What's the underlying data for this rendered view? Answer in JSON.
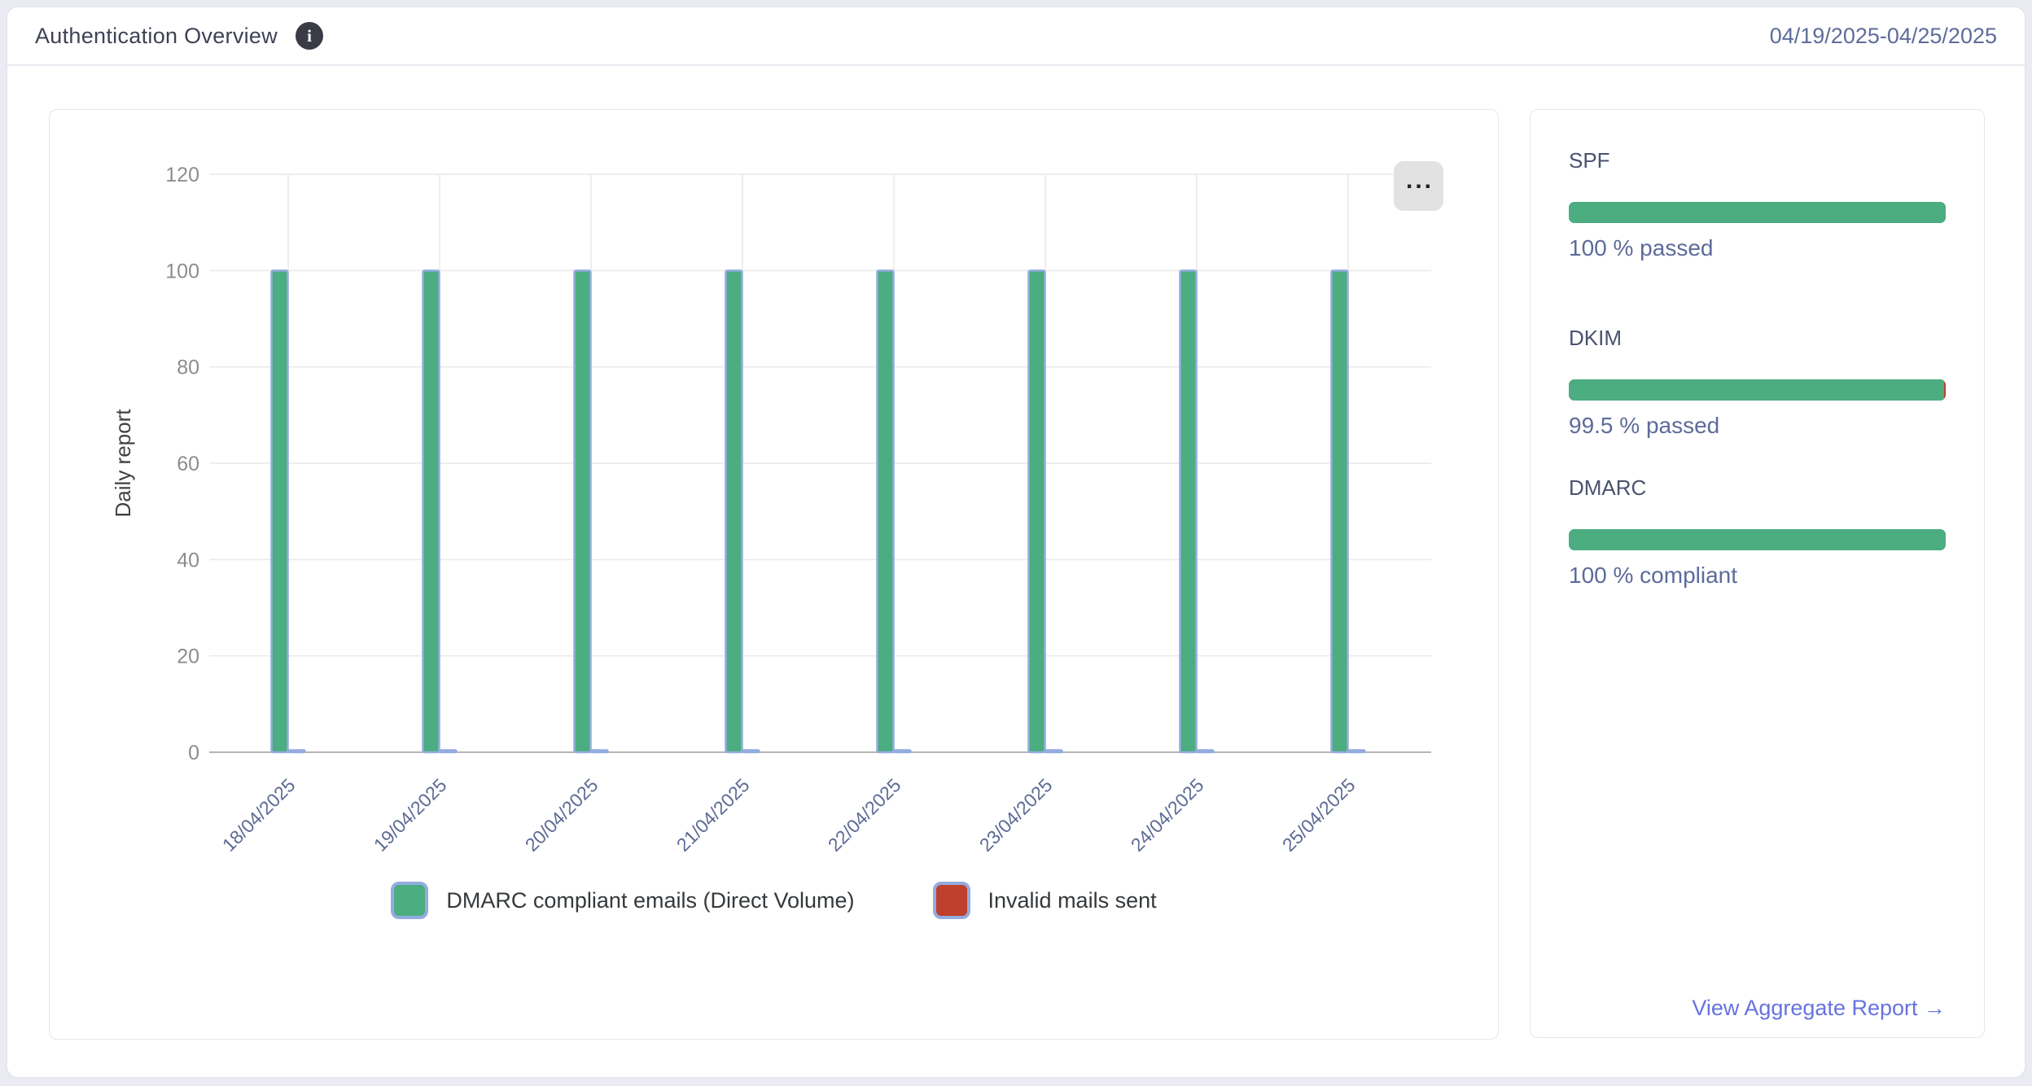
{
  "header": {
    "title": "Authentication Overview",
    "date_range": "04/19/2025-04/25/2025"
  },
  "icons": {
    "info": "i",
    "menu_dots": "..."
  },
  "chart_data": {
    "type": "bar",
    "title": "",
    "ylabel": "Daily report",
    "xlabel": "",
    "ylim": [
      0,
      120
    ],
    "ytick_step": 20,
    "grid": true,
    "legend_position": "bottom",
    "bar_stroke_color": "#93acdf",
    "categories": [
      "18/04/2025",
      "19/04/2025",
      "20/04/2025",
      "21/04/2025",
      "22/04/2025",
      "23/04/2025",
      "24/04/2025",
      "25/04/2025"
    ],
    "series": [
      {
        "name": "DMARC compliant emails (Direct Volume)",
        "color": "#4bad80",
        "values": [
          100,
          100,
          100,
          100,
          100,
          100,
          100,
          100
        ]
      },
      {
        "name": "Invalid mails sent",
        "color": "#c0402e",
        "values": [
          0,
          0,
          0,
          0,
          0,
          0,
          0,
          0
        ]
      }
    ]
  },
  "sidebar": {
    "sections": [
      {
        "label": "SPF",
        "percent": 100,
        "status_text": "100 % passed",
        "fill_color": "#4bad80",
        "track_color": "#4bad80"
      },
      {
        "label": "DKIM",
        "percent": 99.5,
        "status_text": "99.5 % passed",
        "fill_color": "#4bad80",
        "track_color": "#c0402e"
      },
      {
        "label": "DMARC",
        "percent": 100,
        "status_text": "100 % compliant",
        "fill_color": "#4bad80",
        "track_color": "#4bad80"
      }
    ],
    "link_label": "View Aggregate Report →"
  },
  "colors": {
    "page_background": "#ebecf3",
    "card_border": "#e4e6ef",
    "title_text": "#3f4254",
    "slate_text": "#5e6c9b",
    "axis_tick_gray": "#8d8d8d",
    "x_label_slate": "#5d6a94",
    "grid_line": "#e9e9e9",
    "baseline": "#b5b5b5",
    "green": "#4bad80",
    "red": "#c0402e",
    "bar_stroke_blue": "#93acdf",
    "link_blue": "#6673e0"
  }
}
